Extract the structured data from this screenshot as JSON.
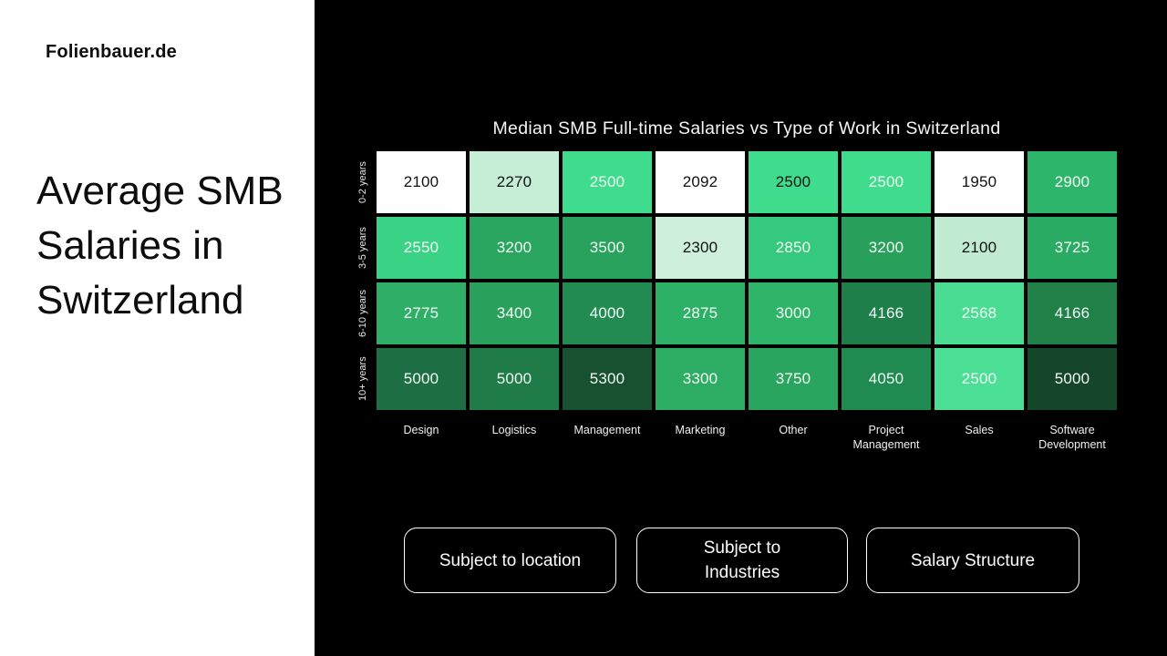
{
  "slide": {
    "brand": "Folienbauer.de",
    "title_lines": [
      "Average SMB",
      "Salaries in",
      "Switzerland"
    ]
  },
  "chart_data": {
    "type": "heatmap",
    "title": "Median SMB Full-time Salaries vs Type of Work in Switzerland",
    "x_categories": [
      "Design",
      "Logistics",
      "Management",
      "Marketing",
      "Other",
      "Project Management",
      "Sales",
      "Software Development"
    ],
    "y_categories": [
      "0-2 years",
      "3-5 years",
      "6-10 years",
      "10+ years"
    ],
    "values": [
      [
        2100,
        2270,
        2500,
        2092,
        2500,
        2500,
        1950,
        2900
      ],
      [
        2550,
        3200,
        3500,
        2300,
        2850,
        3200,
        2100,
        3725
      ],
      [
        2775,
        3400,
        4000,
        2875,
        3000,
        4166,
        2568,
        4166
      ],
      [
        5000,
        5000,
        5300,
        3300,
        3750,
        4050,
        2500,
        5000
      ]
    ],
    "cell_colors": [
      [
        "#ffffff",
        "#c6edd6",
        "#3edc8c",
        "#ffffff",
        "#3edc8c",
        "#3edc8c",
        "#ffffff",
        "#2db56c"
      ],
      [
        "#3ad386",
        "#2aa660",
        "#29a25e",
        "#cdefdc",
        "#35c97d",
        "#28a05b",
        "#c0ebd1",
        "#2aab63"
      ],
      [
        "#2fae68",
        "#29a15d",
        "#218b51",
        "#2db167",
        "#2fb56a",
        "#1f7f4b",
        "#49dc92",
        "#208048"
      ],
      [
        "#1d6f43",
        "#1f7c49",
        "#175130",
        "#2dac64",
        "#2aa55f",
        "#208b50",
        "#4bdf95",
        "#154629"
      ]
    ],
    "cell_text": [
      [
        "dark",
        "dark",
        "light",
        "dark",
        "dark",
        "light",
        "dark",
        "light"
      ],
      [
        "light",
        "light",
        "light",
        "dark",
        "light",
        "light",
        "dark",
        "light"
      ],
      [
        "light",
        "light",
        "light",
        "light",
        "light",
        "light",
        "light",
        "light"
      ],
      [
        "light",
        "light",
        "light",
        "light",
        "light",
        "light",
        "light",
        "light"
      ]
    ],
    "value_min": 1950,
    "value_max": 5300,
    "colormap": "white-to-dark-green",
    "legend": "none",
    "grid": "black-gaps"
  },
  "buttons": [
    {
      "label": "Subject to location"
    },
    {
      "label": "Subject to Industries"
    },
    {
      "label": "Salary Structure"
    }
  ],
  "colors": {
    "panel_bg": "#000000",
    "sidebar_bg": "#ffffff",
    "chart_title_text": "#f5f5f5",
    "axis_label_text": "#f0f0f0",
    "button_border": "#ffffff",
    "button_text": "#ffffff",
    "dark_cell_text": "#111111",
    "light_cell_text": "#f2faf5"
  }
}
